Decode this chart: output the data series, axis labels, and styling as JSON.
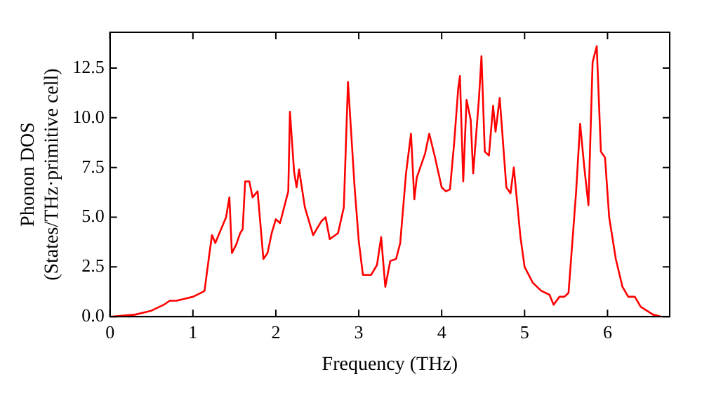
{
  "chart_data": {
    "type": "line",
    "xlabel": "Frequency (THz)",
    "ylabel": "Phonon DOS\n(States/THz·primitive cell)",
    "x": [
      0,
      0.3,
      0.5,
      0.65,
      0.72,
      0.8,
      0.9,
      1.0,
      1.1,
      1.14,
      1.2,
      1.23,
      1.27,
      1.33,
      1.4,
      1.44,
      1.47,
      1.52,
      1.57,
      1.6,
      1.63,
      1.68,
      1.72,
      1.78,
      1.85,
      1.9,
      1.95,
      2.0,
      2.05,
      2.1,
      2.15,
      2.17,
      2.22,
      2.25,
      2.28,
      2.35,
      2.45,
      2.55,
      2.6,
      2.65,
      2.75,
      2.82,
      2.87,
      2.95,
      3.0,
      3.05,
      3.15,
      3.22,
      3.27,
      3.32,
      3.38,
      3.45,
      3.5,
      3.57,
      3.63,
      3.67,
      3.7,
      3.8,
      3.85,
      3.92,
      4.0,
      4.05,
      4.1,
      4.15,
      4.2,
      4.22,
      4.26,
      4.3,
      4.35,
      4.38,
      4.45,
      4.48,
      4.52,
      4.57,
      4.62,
      4.65,
      4.7,
      4.78,
      4.83,
      4.87,
      4.95,
      5.0,
      5.1,
      5.2,
      5.3,
      5.35,
      5.42,
      5.48,
      5.53,
      5.62,
      5.67,
      5.72,
      5.77,
      5.82,
      5.87,
      5.92,
      5.97,
      6.02,
      6.1,
      6.18,
      6.25,
      6.33,
      6.4,
      6.55,
      6.65
    ],
    "series": [
      {
        "color": "#ff0000",
        "values": [
          0,
          0.1,
          0.3,
          0.6,
          0.8,
          0.8,
          0.9,
          1.0,
          1.2,
          1.3,
          3.2,
          4.1,
          3.7,
          4.3,
          5.0,
          6.0,
          3.2,
          3.6,
          4.2,
          4.4,
          6.8,
          6.8,
          6.0,
          6.3,
          2.9,
          3.2,
          4.2,
          4.9,
          4.7,
          5.5,
          6.3,
          10.3,
          7.3,
          6.5,
          7.4,
          5.5,
          4.1,
          4.8,
          5.0,
          3.9,
          4.2,
          5.5,
          11.8,
          6.5,
          3.8,
          2.1,
          2.1,
          2.6,
          4.0,
          1.5,
          2.8,
          2.9,
          3.7,
          7.2,
          9.2,
          5.9,
          7.0,
          8.2,
          9.2,
          8.0,
          6.5,
          6.3,
          6.4,
          8.7,
          11.5,
          12.1,
          6.8,
          10.9,
          9.9,
          7.2,
          11.0,
          13.1,
          8.3,
          8.1,
          10.6,
          9.3,
          11.0,
          6.5,
          6.2,
          7.5,
          4.0,
          2.5,
          1.7,
          1.3,
          1.1,
          0.6,
          1.0,
          1.0,
          1.2,
          6.2,
          9.7,
          7.5,
          5.6,
          12.8,
          13.6,
          8.3,
          8.0,
          5.0,
          2.9,
          1.5,
          1.0,
          1.0,
          0.5,
          0.1,
          0.0
        ]
      }
    ],
    "xlim": [
      0,
      6.75
    ],
    "xticks": [
      0,
      1,
      2,
      3,
      4,
      5,
      6
    ],
    "ylim": [
      0,
      14.3
    ],
    "yticks": [
      {
        "value": 0,
        "label": "0.0"
      },
      {
        "value": 2.5,
        "label": "2.5"
      },
      {
        "value": 5,
        "label": "5.0"
      },
      {
        "value": 7.5,
        "label": "7.5"
      },
      {
        "value": 10,
        "label": "10.0"
      },
      {
        "value": 12.5,
        "label": "12.5"
      }
    ],
    "grid": false,
    "legend": false,
    "marker": "none",
    "line_style": "solid"
  }
}
